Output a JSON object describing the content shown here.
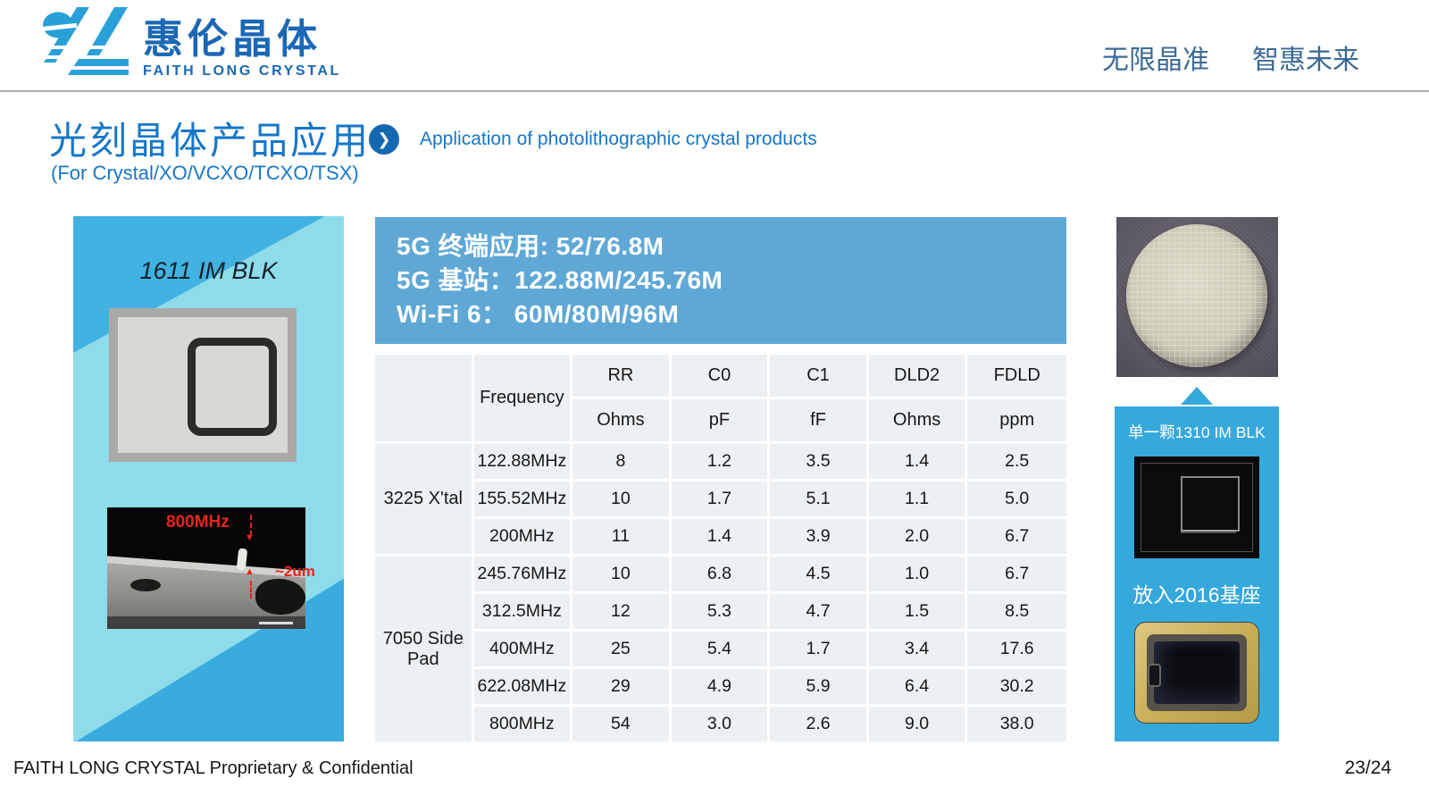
{
  "header": {
    "logo_cn": "惠伦晶体",
    "logo_en": "FAITH LONG CRYSTAL",
    "tagline_1": "无限晶准",
    "tagline_2": "智惠未来"
  },
  "title": {
    "cn": "光刻晶体产品应用",
    "en": "Application of photolithographic crystal products",
    "scope": "(For Crystal/XO/VCXO/TCXO/TSX)"
  },
  "icons": {
    "title_arrow": "❯",
    "sem_arrow_down": "▼",
    "sem_arrow_up": "▲"
  },
  "left_panel": {
    "label": "1611 IM BLK",
    "sem_freq": "800MHz",
    "sem_thickness": "~2um"
  },
  "banner": {
    "lines": [
      "5G 终端应用: 52/76.8M",
      "5G 基站：122.88M/245.76M",
      "Wi-Fi 6： 60M/80M/96M"
    ]
  },
  "table": {
    "frequency_header": "Frequency",
    "columns": [
      {
        "name": "RR",
        "unit": "Ohms"
      },
      {
        "name": "C0",
        "unit": "pF"
      },
      {
        "name": "C1",
        "unit": "fF"
      },
      {
        "name": "DLD2",
        "unit": "Ohms"
      },
      {
        "name": "FDLD",
        "unit": "ppm"
      }
    ],
    "groups": [
      {
        "name": "3225 X'tal",
        "rows": [
          [
            "122.88MHz",
            "8",
            "1.2",
            "3.5",
            "1.4",
            "2.5"
          ],
          [
            "155.52MHz",
            "10",
            "1.7",
            "5.1",
            "1.1",
            "5.0"
          ],
          [
            "200MHz",
            "11",
            "1.4",
            "3.9",
            "2.0",
            "6.7"
          ]
        ]
      },
      {
        "name": "7050 Side Pad",
        "rows": [
          [
            "245.76MHz",
            "10",
            "6.8",
            "4.5",
            "1.0",
            "6.7"
          ],
          [
            "312.5MHz",
            "12",
            "5.3",
            "4.7",
            "1.5",
            "8.5"
          ],
          [
            "400MHz",
            "25",
            "5.4",
            "1.7",
            "3.4",
            "17.6"
          ],
          [
            "622.08MHz",
            "29",
            "4.9",
            "5.9",
            "6.4",
            "30.2"
          ],
          [
            "800MHz",
            "54",
            "3.0",
            "2.6",
            "9.0",
            "38.0"
          ]
        ]
      }
    ]
  },
  "right_panel": {
    "caption_top": "单一颗1310 IM BLK",
    "caption_bottom": "放入2016基座"
  },
  "footer": {
    "left": "FAITH LONG CRYSTAL Proprietary & Confidential",
    "page": "23/24"
  },
  "colors": {
    "brand_blue": "#1B68B4",
    "title_blue": "#1777C8",
    "banner_blue": "#5FA8D6",
    "panel_cyan": "#8EDCEA",
    "accent_cyan": "#35A8DC",
    "table_cell_gray": "#EDF0F3",
    "annotation_red": "#E8251C",
    "tagline_blue": "#3D6A94"
  }
}
